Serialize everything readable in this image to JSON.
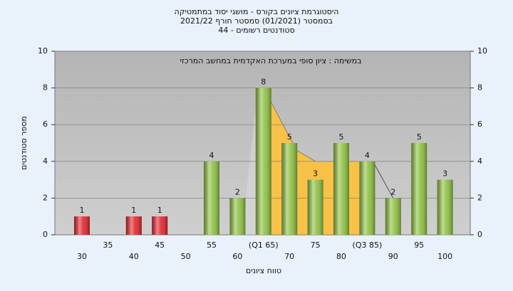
{
  "chart_data": {
    "type": "bar",
    "title": [
      "היסטוגרמת ציונים בקורס - מושגי יסוד במתמטיקה",
      "בסמסטר  (01/2021)  סמסטר חורף  2021/22",
      "סטודנטים רשומים - 44"
    ],
    "annotation": "במשימה : ציון סופי במערכת האקדמית במחשב המרכזי",
    "x_label": "טווח ציונים",
    "y_label": "מספר סטודנטים",
    "categories": [
      "30",
      "35",
      "40",
      "45",
      "50",
      "55",
      "60",
      "(Q1 65)",
      "70",
      "75",
      "80",
      "(Q3 85)",
      "90",
      "95",
      "100"
    ],
    "values": [
      1,
      0,
      1,
      1,
      0,
      4,
      2,
      8,
      5,
      3,
      5,
      4,
      2,
      5,
      3
    ],
    "colors": [
      "#e0222a",
      "#e0222a",
      "#e0222a",
      "#e0222a",
      "#8cbf3f",
      "#8cbf3f",
      "#8cbf3f",
      "#8cbf3f",
      "#8cbf3f",
      "#8cbf3f",
      "#8cbf3f",
      "#8cbf3f",
      "#8cbf3f",
      "#8cbf3f",
      "#8cbf3f"
    ],
    "ylim": [
      0,
      10
    ],
    "yticks": [
      0,
      2,
      4,
      6,
      8,
      10
    ],
    "y2lim": [
      0,
      10
    ],
    "y2ticks": [
      0,
      2,
      4,
      6,
      8,
      10
    ],
    "grid": true
  }
}
